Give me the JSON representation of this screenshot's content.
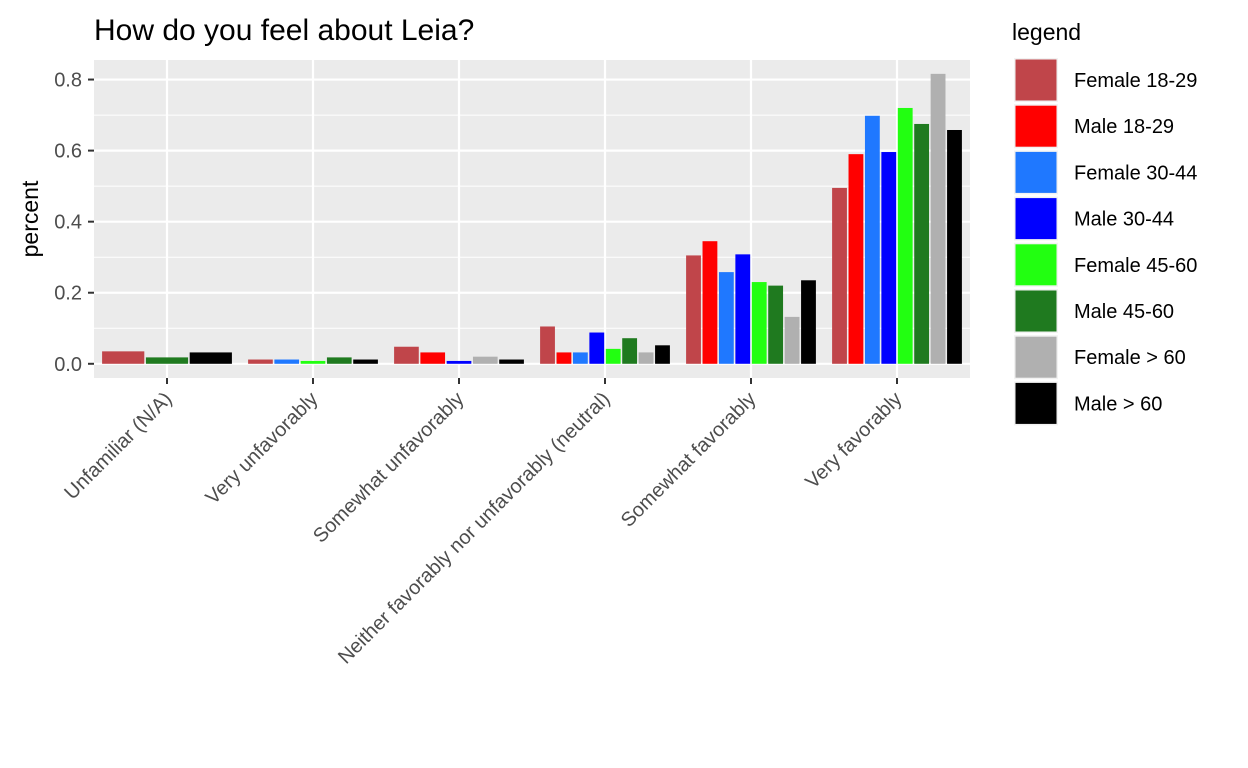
{
  "chart_data": {
    "type": "bar",
    "title": "How do you feel about Leia?",
    "xlabel": "",
    "ylabel": "percent",
    "ylim": [
      -0.04,
      0.855
    ],
    "yticks": [
      0.0,
      0.2,
      0.4,
      0.6,
      0.8
    ],
    "ytick_labels": [
      "0.0",
      "0.2",
      "0.4",
      "0.6",
      "0.8"
    ],
    "grid": true,
    "legend_title": "legend",
    "legend_position": "right",
    "categories": [
      "Unfamiliar (N/A)",
      "Very unfavorably",
      "Somewhat unfavorably",
      "Neither favorably nor unfavorably (neutral)",
      "Somewhat favorably",
      "Very favorably"
    ],
    "series": [
      {
        "name": "Female 18-29",
        "color": "#c0454a",
        "values": [
          0.035,
          0.012,
          0.048,
          0.105,
          0.305,
          0.495
        ]
      },
      {
        "name": "Male 18-29",
        "color": "#ff0000",
        "values": [
          null,
          null,
          0.032,
          0.032,
          0.345,
          0.59
        ]
      },
      {
        "name": "Female 30-44",
        "color": "#1f78ff",
        "values": [
          null,
          0.012,
          null,
          0.032,
          0.258,
          0.698
        ]
      },
      {
        "name": "Male 30-44",
        "color": "#0000ff",
        "values": [
          null,
          null,
          0.008,
          0.088,
          0.308,
          0.596
        ]
      },
      {
        "name": "Female 45-60",
        "color": "#22ff11",
        "values": [
          null,
          0.008,
          null,
          0.042,
          0.23,
          0.72
        ]
      },
      {
        "name": "Male 45-60",
        "color": "#1f7a1f",
        "values": [
          0.018,
          0.018,
          null,
          0.072,
          0.22,
          0.675
        ]
      },
      {
        "name": "Female > 60",
        "color": "#b0b0b0",
        "values": [
          null,
          null,
          0.02,
          0.032,
          0.132,
          0.816
        ]
      },
      {
        "name": "Male > 60",
        "color": "#000000",
        "values": [
          0.032,
          0.012,
          0.012,
          0.052,
          0.235,
          0.658
        ]
      }
    ]
  }
}
